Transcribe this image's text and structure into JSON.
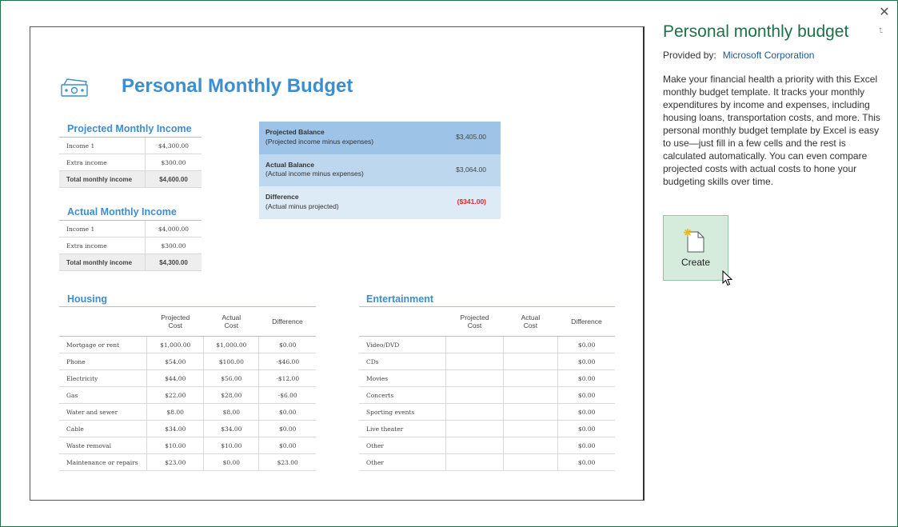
{
  "panel": {
    "title": "Personal monthly budget",
    "provided_by_label": "Provided by:",
    "provider": "Microsoft Corporation",
    "description": "Make your financial health a priority with this Excel monthly budget template. It tracks your monthly expenditures by income and expenses, including housing loans, transportation costs, and more. This personal monthly budget template by Excel is easy to use—just fill in a few cells and the rest is calculated automatically. You can even compare projected costs with actual costs to hone your budgeting skills over time.",
    "create_label": "Create",
    "close_glyph": "✕",
    "pin_glyph": "⮤"
  },
  "preview": {
    "title": "Personal Monthly Budget",
    "projected_income": {
      "title": "Projected Monthly Income",
      "rows": [
        {
          "label": "Income 1",
          "value": "$4,300.00"
        },
        {
          "label": "Extra income",
          "value": "$300.00"
        },
        {
          "label": "Total monthly income",
          "value": "$4,600.00"
        }
      ]
    },
    "actual_income": {
      "title": "Actual Monthly Income",
      "rows": [
        {
          "label": "Income 1",
          "value": "$4,000.00"
        },
        {
          "label": "Extra income",
          "value": "$300.00"
        },
        {
          "label": "Total monthly income",
          "value": "$4,300.00"
        }
      ]
    },
    "balances": [
      {
        "label": "Projected Balance",
        "sub": "(Projected income minus expenses)",
        "value": "$3,405.00",
        "color": "#9dc3e6"
      },
      {
        "label": "Actual Balance",
        "sub": "(Actual income minus expenses)",
        "value": "$3,064.00",
        "color": "#bdd7ee"
      },
      {
        "label": "Difference",
        "sub": "(Actual minus projected)",
        "value": "($341.00)",
        "color": "#ddebf7"
      }
    ],
    "housing": {
      "title": "Housing",
      "headers": [
        "",
        "Projected\nCost",
        "Actual\nCost",
        "Difference"
      ],
      "rows": [
        [
          "Mortgage or rent",
          "$1,000.00",
          "$1,000.00",
          "$0.00"
        ],
        [
          "Phone",
          "$54.00",
          "$100.00",
          "-$46.00"
        ],
        [
          "Electricity",
          "$44.00",
          "$56.00",
          "-$12.00"
        ],
        [
          "Gas",
          "$22.00",
          "$28.00",
          "-$6.00"
        ],
        [
          "Water and sewer",
          "$8.00",
          "$8.00",
          "$0.00"
        ],
        [
          "Cable",
          "$34.00",
          "$34.00",
          "$0.00"
        ],
        [
          "Waste removal",
          "$10.00",
          "$10.00",
          "$0.00"
        ],
        [
          "Maintenance or repairs",
          "$23.00",
          "$0.00",
          "$23.00"
        ]
      ]
    },
    "entertainment": {
      "title": "Entertainment",
      "headers": [
        "",
        "Projected\nCost",
        "Actual\nCost",
        "Difference"
      ],
      "rows": [
        [
          "Video/DVD",
          "",
          "",
          "$0.00"
        ],
        [
          "CDs",
          "",
          "",
          "$0.00"
        ],
        [
          "Movies",
          "",
          "",
          "$0.00"
        ],
        [
          "Concerts",
          "",
          "",
          "$0.00"
        ],
        [
          "Sporting events",
          "",
          "",
          "$0.00"
        ],
        [
          "Live theater",
          "",
          "",
          "$0.00"
        ],
        [
          "Other",
          "",
          "",
          "$0.00"
        ],
        [
          "Other",
          "",
          "",
          "$0.00"
        ]
      ]
    }
  },
  "colors": {
    "accent": "#1e7145",
    "title_blue": "#3d8ed0",
    "negative": "#e0242a"
  }
}
